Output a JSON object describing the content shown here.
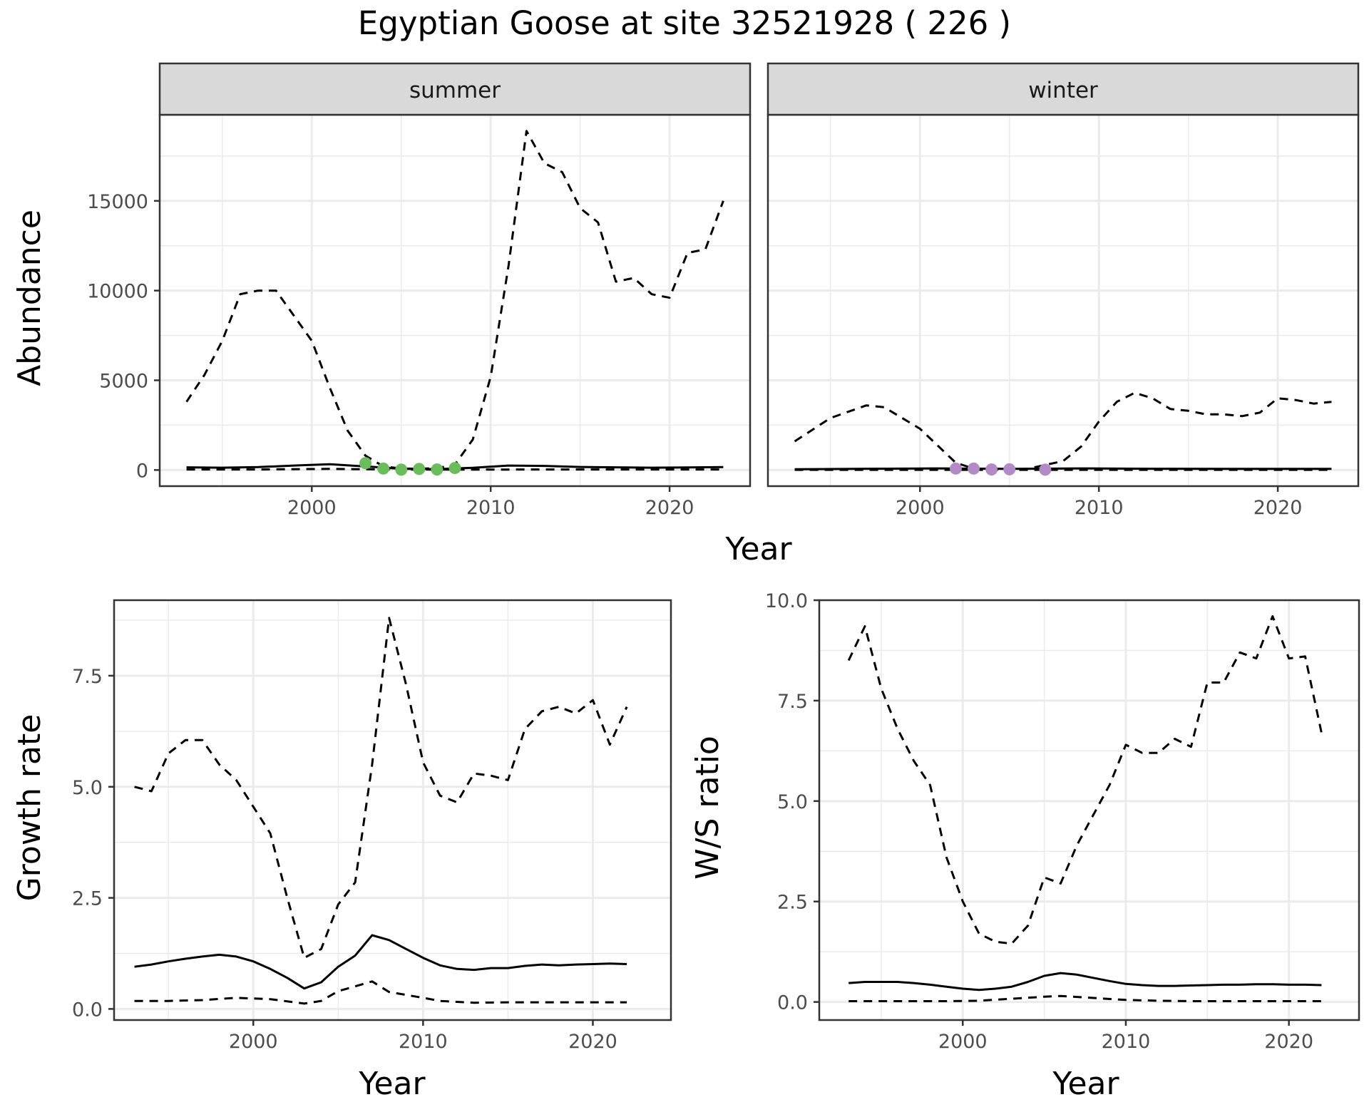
{
  "title": "Egyptian Goose at site 32521928 ( 226 )",
  "colors": {
    "summer_points": "#6bbd5c",
    "winter_points": "#b28bc6",
    "line": "#000000",
    "strip_fill": "#d9d9d9",
    "grid": "#ebebeb"
  },
  "chart_data": [
    {
      "id": "abundance-summer",
      "type": "line",
      "facet": "summer",
      "ylabel": "Abundance",
      "xlim": [
        1991.5,
        2024.5
      ],
      "ylim": [
        -900,
        19800
      ],
      "xticks": [
        2000,
        2010,
        2020
      ],
      "yticks": [
        0,
        5000,
        10000,
        15000
      ],
      "series": [
        {
          "name": "estimate",
          "style": "solid",
          "x": [
            1993,
            1995,
            1997,
            1999,
            2001,
            2003,
            2005,
            2007,
            2009,
            2011,
            2013,
            2015,
            2017,
            2019,
            2021,
            2023
          ],
          "y": [
            150,
            130,
            160,
            250,
            320,
            200,
            60,
            50,
            120,
            250,
            230,
            170,
            150,
            130,
            140,
            160
          ]
        },
        {
          "name": "upper",
          "style": "dashed",
          "x": [
            1993,
            1994,
            1995,
            1996,
            1997,
            1998,
            1999,
            2000,
            2001,
            2002,
            2003,
            2004,
            2005,
            2006,
            2007,
            2008,
            2009,
            2010,
            2011,
            2012,
            2013,
            2014,
            2015,
            2016,
            2017,
            2018,
            2019,
            2020,
            2021,
            2022,
            2023
          ],
          "y": [
            3800,
            5300,
            7200,
            9800,
            10000,
            10000,
            8600,
            7200,
            4600,
            2200,
            800,
            200,
            80,
            70,
            100,
            300,
            1700,
            5200,
            11400,
            18900,
            17100,
            16600,
            14600,
            13800,
            10500,
            10700,
            9800,
            9600,
            12100,
            12300,
            15000
          ]
        },
        {
          "name": "lower",
          "style": "dashed",
          "x": [
            1993,
            1997,
            2001,
            2005,
            2009,
            2013,
            2017,
            2021,
            2023
          ],
          "y": [
            30,
            30,
            60,
            20,
            20,
            30,
            30,
            30,
            30
          ]
        }
      ],
      "points": {
        "x": [
          2003,
          2004,
          2005,
          2006,
          2007,
          2008
        ],
        "y": [
          380,
          80,
          20,
          60,
          30,
          110
        ]
      }
    },
    {
      "id": "abundance-winter",
      "type": "line",
      "facet": "winter",
      "xlim": [
        1991.5,
        2024.5
      ],
      "ylim": [
        -900,
        19800
      ],
      "xticks": [
        2000,
        2010,
        2020
      ],
      "series": [
        {
          "name": "estimate",
          "style": "solid",
          "x": [
            1993,
            1997,
            2001,
            2005,
            2009,
            2013,
            2017,
            2021,
            2023
          ],
          "y": [
            40,
            70,
            90,
            60,
            90,
            70,
            60,
            60,
            60
          ]
        },
        {
          "name": "upper",
          "style": "dashed",
          "x": [
            1993,
            1995,
            1997,
            1998,
            2000,
            2002,
            2003,
            2004,
            2005,
            2006,
            2008,
            2009,
            2010,
            2011,
            2012,
            2013,
            2014,
            2015,
            2016,
            2017,
            2018,
            2019,
            2020,
            2021,
            2022,
            2023
          ],
          "y": [
            1600,
            2900,
            3600,
            3500,
            2300,
            400,
            80,
            50,
            30,
            60,
            500,
            1300,
            2700,
            3800,
            4300,
            4000,
            3400,
            3300,
            3100,
            3100,
            3000,
            3200,
            4000,
            3900,
            3700,
            3800
          ]
        },
        {
          "name": "lower",
          "style": "dashed",
          "x": [
            1993,
            2003,
            2013,
            2023
          ],
          "y": [
            10,
            10,
            10,
            10
          ]
        }
      ],
      "points": {
        "x": [
          2002,
          2003,
          2004,
          2005,
          2007
        ],
        "y": [
          80,
          80,
          30,
          40,
          20
        ]
      }
    },
    {
      "id": "growth-rate",
      "type": "line",
      "xlabel": "Year",
      "ylabel": "Growth rate",
      "xlim": [
        1991.8,
        2024.6
      ],
      "ylim": [
        -0.25,
        9.2
      ],
      "xticks": [
        2000,
        2010,
        2020
      ],
      "yticks": [
        0.0,
        2.5,
        5.0,
        7.5
      ],
      "ytick_labels": [
        "0.0",
        "2.5",
        "5.0",
        "7.5"
      ],
      "series": [
        {
          "name": "estimate",
          "style": "solid",
          "x": [
            1993,
            1994,
            1995,
            1996,
            1997,
            1998,
            1999,
            2000,
            2001,
            2002,
            2003,
            2004,
            2005,
            2006,
            2007,
            2008,
            2009,
            2010,
            2011,
            2012,
            2013,
            2014,
            2015,
            2016,
            2017,
            2018,
            2019,
            2020,
            2021,
            2022
          ],
          "y": [
            0.95,
            1.0,
            1.07,
            1.13,
            1.18,
            1.22,
            1.18,
            1.07,
            0.9,
            0.7,
            0.46,
            0.6,
            0.95,
            1.2,
            1.66,
            1.55,
            1.35,
            1.15,
            0.98,
            0.9,
            0.88,
            0.92,
            0.92,
            0.97,
            1.0,
            0.98,
            1.0,
            1.01,
            1.02,
            1.01
          ]
        },
        {
          "name": "upper",
          "style": "dashed",
          "x": [
            1993,
            1994,
            1995,
            1996,
            1997,
            1998,
            1999,
            2000,
            2001,
            2002,
            2003,
            2004,
            2005,
            2006,
            2007,
            2008,
            2009,
            2010,
            2011,
            2012,
            2013,
            2014,
            2015,
            2016,
            2017,
            2018,
            2019,
            2020,
            2021,
            2022
          ],
          "y": [
            5.0,
            4.9,
            5.75,
            6.05,
            6.05,
            5.5,
            5.15,
            4.55,
            3.95,
            2.5,
            1.15,
            1.35,
            2.35,
            2.85,
            5.5,
            8.8,
            7.3,
            5.55,
            4.8,
            4.65,
            5.3,
            5.25,
            5.15,
            6.3,
            6.7,
            6.8,
            6.65,
            6.95,
            5.95,
            6.8
          ]
        },
        {
          "name": "lower",
          "style": "dashed",
          "x": [
            1993,
            1995,
            1997,
            1999,
            2001,
            2003,
            2004,
            2005,
            2007,
            2008,
            2010,
            2011,
            2013,
            2015,
            2017,
            2019,
            2022
          ],
          "y": [
            0.18,
            0.18,
            0.2,
            0.25,
            0.22,
            0.12,
            0.18,
            0.4,
            0.62,
            0.38,
            0.25,
            0.18,
            0.14,
            0.15,
            0.15,
            0.15,
            0.15
          ]
        }
      ]
    },
    {
      "id": "ws-ratio",
      "type": "line",
      "xlabel": "Year",
      "ylabel": "W/S ratio",
      "xlim": [
        1991.2,
        2024.3
      ],
      "ylim": [
        -0.45,
        10.0
      ],
      "xticks": [
        2000,
        2010,
        2020
      ],
      "yticks": [
        0.0,
        2.5,
        5.0,
        7.5,
        10.0
      ],
      "ytick_labels": [
        "0.0",
        "2.5",
        "5.0",
        "7.5",
        "10.0"
      ],
      "series": [
        {
          "name": "estimate",
          "style": "solid",
          "x": [
            1993,
            1994,
            1995,
            1996,
            1997,
            1998,
            1999,
            2000,
            2001,
            2002,
            2003,
            2004,
            2005,
            2006,
            2007,
            2008,
            2009,
            2010,
            2011,
            2012,
            2013,
            2014,
            2015,
            2016,
            2017,
            2018,
            2019,
            2020,
            2021,
            2022
          ],
          "y": [
            0.47,
            0.5,
            0.5,
            0.5,
            0.47,
            0.43,
            0.38,
            0.33,
            0.3,
            0.33,
            0.38,
            0.5,
            0.65,
            0.72,
            0.68,
            0.6,
            0.52,
            0.45,
            0.42,
            0.4,
            0.4,
            0.41,
            0.42,
            0.43,
            0.43,
            0.44,
            0.44,
            0.43,
            0.43,
            0.42
          ]
        },
        {
          "name": "upper",
          "style": "dashed",
          "x": [
            1993,
            1994,
            1995,
            1996,
            1997,
            1998,
            1999,
            2000,
            2001,
            2002,
            2003,
            2004,
            2005,
            2006,
            2007,
            2008,
            2009,
            2010,
            2011,
            2012,
            2013,
            2014,
            2015,
            2016,
            2017,
            2018,
            2019,
            2020,
            2021,
            2022
          ],
          "y": [
            8.5,
            9.35,
            7.8,
            6.8,
            6.0,
            5.4,
            3.6,
            2.5,
            1.7,
            1.5,
            1.45,
            1.9,
            3.1,
            2.95,
            3.9,
            4.65,
            5.4,
            6.4,
            6.2,
            6.2,
            6.55,
            6.35,
            7.95,
            7.95,
            8.7,
            8.55,
            9.6,
            8.55,
            8.6,
            6.7
          ]
        },
        {
          "name": "lower",
          "style": "dashed",
          "x": [
            1993,
            1995,
            1997,
            1999,
            2001,
            2003,
            2005,
            2006,
            2008,
            2010,
            2012,
            2014,
            2016,
            2018,
            2020,
            2022
          ],
          "y": [
            0.02,
            0.02,
            0.02,
            0.02,
            0.03,
            0.08,
            0.13,
            0.15,
            0.1,
            0.05,
            0.03,
            0.02,
            0.02,
            0.02,
            0.02,
            0.02
          ]
        }
      ]
    }
  ],
  "labels": {
    "abundance_ylabel": "Abundance",
    "year": "Year",
    "growth_ylabel": "Growth rate",
    "ws_ylabel": "W/S ratio",
    "facet_summer": "summer",
    "facet_winter": "winter"
  }
}
